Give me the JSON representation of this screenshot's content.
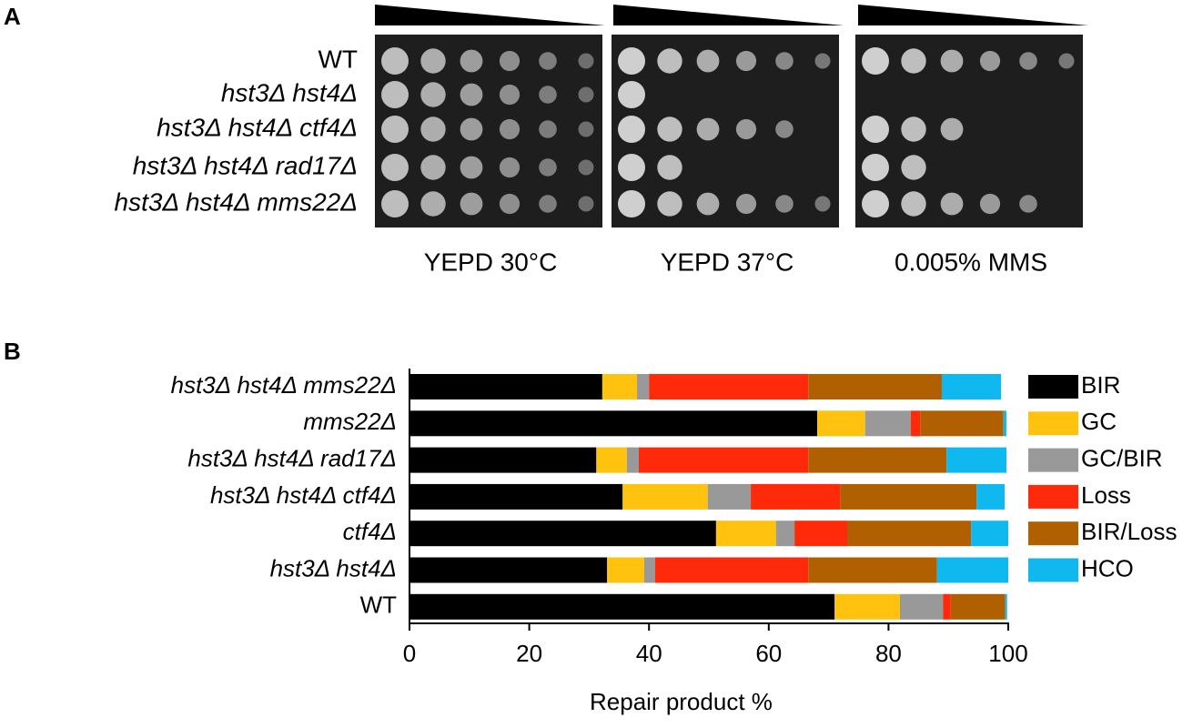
{
  "panel_a": {
    "label": "A",
    "strains": [
      "WT",
      "hst3Δ hst4Δ",
      "hst3Δ hst4Δ ctf4Δ",
      "hst3Δ hst4Δ rad17Δ",
      "hst3Δ hst4Δ mms22Δ"
    ],
    "conditions": [
      "YEPD 30°C",
      "YEPD 37°C",
      "0.005% MMS"
    ]
  },
  "chart_data": {
    "type": "stacked-barh",
    "label": "B",
    "x_label": "Repair product %",
    "categories": [
      "hst3Δ hst4Δ mms22Δ",
      "mms22Δ",
      "hst3Δ hst4Δ rad17Δ",
      "hst3Δ hst4Δ ctf4Δ",
      "ctf4Δ",
      "hst3Δ hst4Δ",
      "WT"
    ],
    "series": [
      {
        "name": "BIR",
        "color": "#000000",
        "values": [
          32.2,
          68.1,
          31.2,
          35.6,
          51.2,
          33.0,
          71.0
        ]
      },
      {
        "name": "GC",
        "color": "#ffc20e",
        "values": [
          5.8,
          8.0,
          5.1,
          14.2,
          10.0,
          6.2,
          10.9
        ]
      },
      {
        "name": "GC/BIR",
        "color": "#999999",
        "values": [
          2.0,
          7.6,
          2.0,
          7.2,
          3.1,
          1.8,
          7.2
        ]
      },
      {
        "name": "Loss",
        "color": "#ff2a0a",
        "values": [
          26.6,
          1.6,
          28.3,
          14.9,
          8.8,
          25.6,
          1.3
        ]
      },
      {
        "name": "BIR/Loss",
        "color": "#b06000",
        "values": [
          22.3,
          13.9,
          23.1,
          22.8,
          20.7,
          21.5,
          9.1
        ]
      },
      {
        "name": "HCO",
        "color": "#10b8f0",
        "values": [
          9.9,
          0.5,
          10.0,
          4.7,
          6.2,
          11.9,
          0.3
        ]
      }
    ],
    "xlim": [
      0,
      100
    ],
    "xticks": [
      0,
      20,
      40,
      60,
      80,
      100
    ]
  }
}
